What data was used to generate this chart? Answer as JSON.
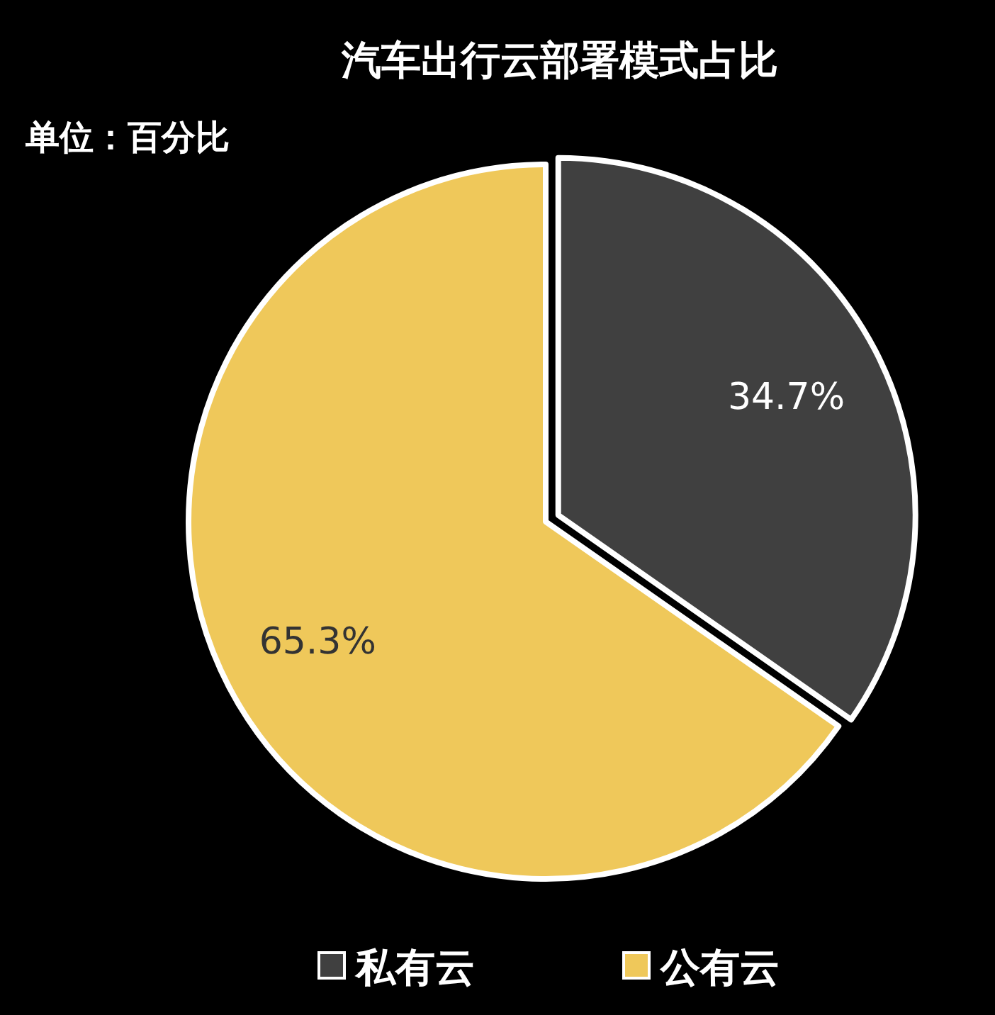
{
  "chart_data": {
    "type": "pie",
    "title": "汽车出行云部署模式占比",
    "annotations": [
      "单位：百分比"
    ],
    "categories": [
      "私有云",
      "公有云"
    ],
    "values": [
      34.7,
      65.3
    ],
    "colors": [
      "#404040",
      "#efc85a"
    ],
    "value_labels": [
      "34.7%",
      "65.3%"
    ],
    "legend": "bottom"
  }
}
